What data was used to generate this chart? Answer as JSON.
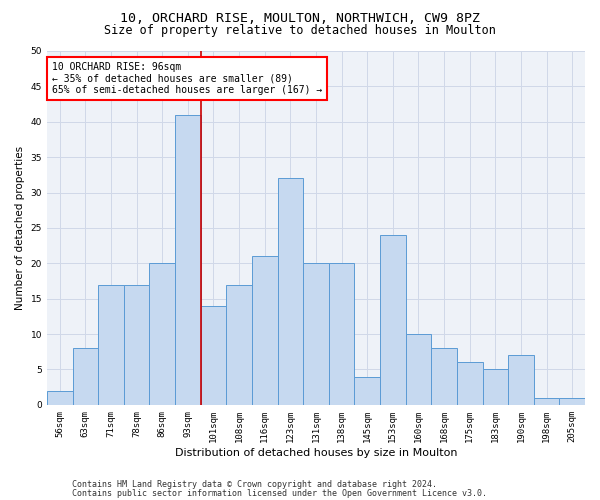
{
  "title1": "10, ORCHARD RISE, MOULTON, NORTHWICH, CW9 8PZ",
  "title2": "Size of property relative to detached houses in Moulton",
  "xlabel": "Distribution of detached houses by size in Moulton",
  "ylabel": "Number of detached properties",
  "categories": [
    "56sqm",
    "63sqm",
    "71sqm",
    "78sqm",
    "86sqm",
    "93sqm",
    "101sqm",
    "108sqm",
    "116sqm",
    "123sqm",
    "131sqm",
    "138sqm",
    "145sqm",
    "153sqm",
    "160sqm",
    "168sqm",
    "175sqm",
    "183sqm",
    "190sqm",
    "198sqm",
    "205sqm"
  ],
  "values": [
    2,
    8,
    17,
    17,
    20,
    41,
    14,
    17,
    21,
    32,
    20,
    20,
    4,
    24,
    10,
    8,
    6,
    5,
    7,
    1,
    1
  ],
  "bar_color": "#c6d9f0",
  "bar_edge_color": "#5b9bd5",
  "annotation_line1": "10 ORCHARD RISE: 96sqm",
  "annotation_line2": "← 35% of detached houses are smaller (89)",
  "annotation_line3": "65% of semi-detached houses are larger (167) →",
  "vline_color": "#cc0000",
  "ylim": [
    0,
    50
  ],
  "yticks": [
    0,
    5,
    10,
    15,
    20,
    25,
    30,
    35,
    40,
    45,
    50
  ],
  "background_color": "#ffffff",
  "grid_color": "#d0d8e8",
  "footer1": "Contains HM Land Registry data © Crown copyright and database right 2024.",
  "footer2": "Contains public sector information licensed under the Open Government Licence v3.0.",
  "title1_fontsize": 9.5,
  "title2_fontsize": 8.5,
  "xlabel_fontsize": 8,
  "ylabel_fontsize": 7.5,
  "tick_fontsize": 6.5,
  "annot_fontsize": 7,
  "footer_fontsize": 6
}
